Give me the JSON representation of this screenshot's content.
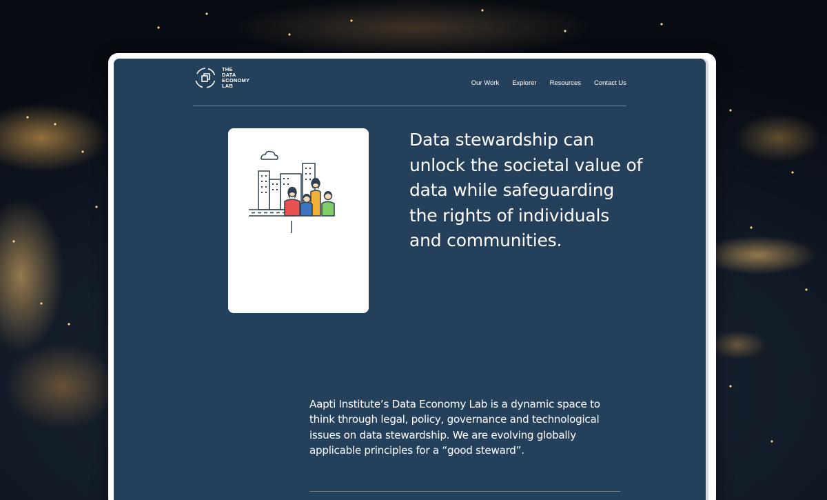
{
  "brand": {
    "logo_lines": [
      "THE",
      "DATA",
      "ECONOMY",
      "LAB"
    ]
  },
  "nav": {
    "items": [
      {
        "label": "Our Work"
      },
      {
        "label": "Explorer"
      },
      {
        "label": "Resources"
      },
      {
        "label": "Contact Us"
      }
    ]
  },
  "hero": {
    "heading": "Data stewardship can unlock the societal value of data while safeguarding the rights of individuals and communities.",
    "illustration": "city-and-people-illustration"
  },
  "intro": {
    "text": "Aapti Institute’s Data Economy Lab is a dynamic space to think through legal, policy, governance and technological issues on data stewardship. We are evolving globally applicable principles for a “good steward”."
  },
  "colors": {
    "page_background": "#25405b",
    "text": "#ffffff",
    "card_background": "#ffffff",
    "illustration_red": "#e8514f",
    "illustration_blue": "#3b75c2",
    "illustration_yellow": "#f2b134",
    "illustration_green": "#7fcf66"
  }
}
